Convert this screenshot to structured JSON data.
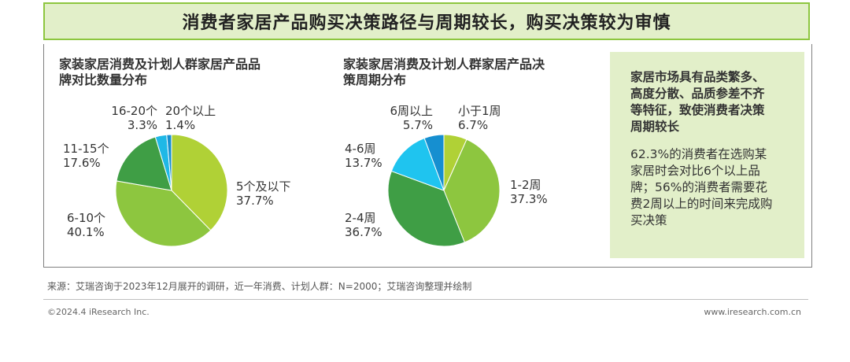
{
  "header": {
    "title": "消费者家居产品购买决策路径与周期较长，购买决策较为审慎"
  },
  "chart_data": [
    {
      "type": "pie",
      "title": "家装家居消费及计划人群家居产品品牌对比数量分布",
      "title_lines": [
        "家装家居消费及计划人群家居产品品",
        "牌对比数量分布"
      ],
      "unit": "%",
      "slices": [
        {
          "label": "5个及以下",
          "value": 37.7,
          "value_text": "37.7%",
          "color": "#b0d136"
        },
        {
          "label": "6-10个",
          "value": 40.1,
          "value_text": "40.1%",
          "color": "#8dc63f"
        },
        {
          "label": "11-15个",
          "value": 17.6,
          "value_text": "17.6%",
          "color": "#3f9e45"
        },
        {
          "label": "16-20个",
          "value": 3.3,
          "value_text": "3.3%",
          "color": "#1fb8e6"
        },
        {
          "label": "20个以上",
          "value": 1.4,
          "value_text": "1.4%",
          "color": "#168fd0"
        }
      ]
    },
    {
      "type": "pie",
      "title": "家装家居消费及计划人群家居产品决策周期分布",
      "title_lines": [
        "家装家居消费及计划人群家居产品决",
        "策周期分布"
      ],
      "unit": "%",
      "slices": [
        {
          "label": "小于1周",
          "value": 6.7,
          "value_text": "6.7%",
          "color": "#b0d136"
        },
        {
          "label": "1-2周",
          "value": 37.3,
          "value_text": "37.3%",
          "color": "#8dc63f"
        },
        {
          "label": "2-4周",
          "value": 36.7,
          "value_text": "36.7%",
          "color": "#3f9e45"
        },
        {
          "label": "4-6周",
          "value": 13.7,
          "value_text": "13.7%",
          "color": "#1fc4ef"
        },
        {
          "label": "6周以上",
          "value": 5.7,
          "value_text": "5.7%",
          "color": "#168fd0"
        }
      ]
    }
  ],
  "side_panel": {
    "heading_lines": [
      "家居市场具有品类繁多、",
      "高度分散、品质参差不齐",
      "等特征，致使消费者决策",
      "周期较长"
    ],
    "body_lines": [
      "62.3%的消费者在选购某",
      "家居时会对比6个以上品",
      "牌；56%的消费者需要花",
      "费2周以上的时间来完成购",
      "买决策"
    ]
  },
  "footer": {
    "source": "来源：艾瑞咨询于2023年12月展开的调研，近一年消费、计划人群：N=2000；艾瑞咨询整理并绘制",
    "copyright": "©2024.4 iResearch Inc.",
    "website": "www.iresearch.com.cn"
  }
}
